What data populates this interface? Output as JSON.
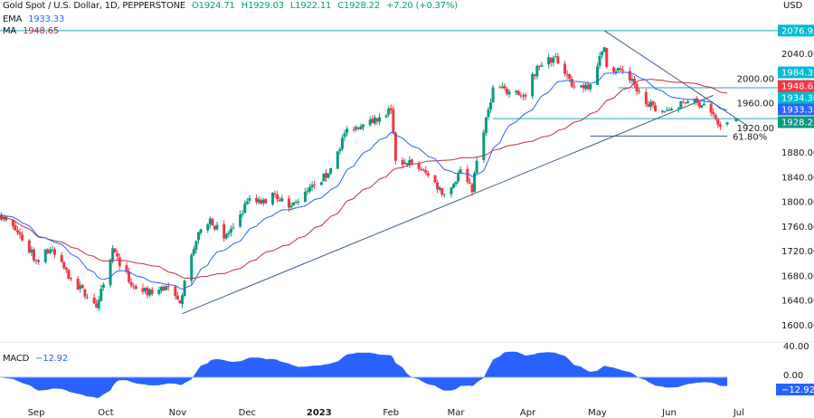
{
  "legend": {
    "symbol": "Gold Spot / U.S. Dollar, 1D, PEPPERSTONE",
    "open": "O1924.71",
    "high": "H1929.03",
    "low": "L1922.11",
    "close": "C1928.22",
    "change": "+7.20 (+0.37%)",
    "ema_label": "EMA",
    "ema_value": "1933.33",
    "ma_label": "MA",
    "ma_value": "1948.65",
    "macd_label": "MACD",
    "macd_value": "−12.92"
  },
  "colors": {
    "up": "#089981",
    "down": "#f23645",
    "ema": "#2962ff",
    "ma": "#c2303e",
    "level_line": "#26a6b8",
    "trendline": "#3b5b8c",
    "fib": "#3b5b8c",
    "macd_fill": "#2962ff",
    "label_cyan": "#00bcd4",
    "label_red": "#f23645",
    "label_blue": "#2962ff",
    "label_green": "#089981"
  },
  "chart_data": {
    "type": "candlestick",
    "currency": "USD",
    "y_ticks": [
      "2040.00",
      "2000.00",
      "1960.00",
      "1920.00",
      "1880.00",
      "1840.00",
      "1800.00",
      "1760.00",
      "1720.00",
      "1680.00",
      "1640.00",
      "1600.00"
    ],
    "ylim": [
      1580,
      2100
    ],
    "x_ticks": [
      {
        "date": "2022-09-01",
        "label": "Sep"
      },
      {
        "date": "2022-10-01",
        "label": "Oct"
      },
      {
        "date": "2022-11-01",
        "label": "Nov"
      },
      {
        "date": "2022-12-01",
        "label": "Dec"
      },
      {
        "date": "2023-01-01",
        "label": "2023"
      },
      {
        "date": "2023-02-01",
        "label": "Feb"
      },
      {
        "date": "2023-03-01",
        "label": "Mar"
      },
      {
        "date": "2023-04-01",
        "label": "Apr"
      },
      {
        "date": "2023-05-01",
        "label": "May"
      },
      {
        "date": "2023-06-01",
        "label": "Jun"
      },
      {
        "date": "2023-07-01",
        "label": "Jul"
      }
    ],
    "approx_closes": [
      [
        "2022-08-16",
        1778
      ],
      [
        "2022-08-24",
        1750
      ],
      [
        "2022-09-01",
        1705
      ],
      [
        "2022-09-07",
        1722
      ],
      [
        "2022-09-16",
        1675
      ],
      [
        "2022-09-23",
        1645
      ],
      [
        "2022-09-27",
        1628
      ],
      [
        "2022-09-30",
        1665
      ],
      [
        "2022-10-04",
        1724
      ],
      [
        "2022-10-07",
        1695
      ],
      [
        "2022-10-13",
        1662
      ],
      [
        "2022-10-21",
        1650
      ],
      [
        "2022-10-27",
        1662
      ],
      [
        "2022-11-02",
        1635
      ],
      [
        "2022-11-04",
        1672
      ],
      [
        "2022-11-10",
        1750
      ],
      [
        "2022-11-15",
        1772
      ],
      [
        "2022-11-21",
        1740
      ],
      [
        "2022-11-25",
        1758
      ],
      [
        "2022-12-01",
        1800
      ],
      [
        "2022-12-09",
        1797
      ],
      [
        "2022-12-13",
        1812
      ],
      [
        "2022-12-19",
        1790
      ],
      [
        "2022-12-23",
        1800
      ],
      [
        "2022-12-30",
        1826
      ],
      [
        "2023-01-05",
        1845
      ],
      [
        "2023-01-13",
        1918
      ],
      [
        "2023-01-20",
        1925
      ],
      [
        "2023-01-26",
        1930
      ],
      [
        "2023-02-01",
        1948
      ],
      [
        "2023-02-03",
        1866
      ],
      [
        "2023-02-10",
        1862
      ],
      [
        "2023-02-17",
        1842
      ],
      [
        "2023-02-24",
        1812
      ],
      [
        "2023-02-28",
        1828
      ],
      [
        "2023-03-03",
        1852
      ],
      [
        "2023-03-08",
        1815
      ],
      [
        "2023-03-10",
        1866
      ],
      [
        "2023-03-13",
        1912
      ],
      [
        "2023-03-17",
        1985
      ],
      [
        "2023-03-24",
        1978
      ],
      [
        "2023-03-31",
        1970
      ],
      [
        "2023-04-05",
        2020
      ],
      [
        "2023-04-13",
        2035
      ],
      [
        "2023-04-21",
        1985
      ],
      [
        "2023-04-28",
        1990
      ],
      [
        "2023-05-04",
        2050
      ],
      [
        "2023-05-05",
        2018
      ],
      [
        "2023-05-12",
        2012
      ],
      [
        "2023-05-19",
        1978
      ],
      [
        "2023-05-26",
        1946
      ],
      [
        "2023-06-02",
        1950
      ],
      [
        "2023-06-09",
        1962
      ],
      [
        "2023-06-16",
        1958
      ],
      [
        "2023-06-21",
        1934
      ],
      [
        "2023-06-23",
        1921
      ],
      [
        "2023-06-26",
        1928.22
      ]
    ],
    "last_candle": {
      "open": 1924.71,
      "high": 1929.03,
      "low": 1922.11,
      "close": 1928.22
    },
    "indicators": {
      "ema": 1933.33,
      "ma": 1948.65,
      "macd": -12.92
    },
    "horizontal_levels": [
      {
        "price": 2076.93,
        "label": "2076.93",
        "color": "label_cyan"
      },
      {
        "price": 1984.32,
        "label": "1984.32",
        "color": "label_cyan"
      },
      {
        "price": 1934.3,
        "label": "1934.30",
        "color": "label_cyan"
      }
    ],
    "price_labels": [
      {
        "text": "1948.65",
        "color": "label_red"
      },
      {
        "text": "1933.33",
        "color": "label_blue"
      },
      {
        "text": "1928.22",
        "color": "label_green"
      }
    ],
    "trendlines": [
      {
        "from": [
          "2022-11-03",
          1618
        ],
        "to": [
          "2023-06-20",
          1972
        ]
      },
      {
        "from": [
          "2023-05-04",
          2076.93
        ],
        "to": [
          "2023-07-05",
          1922
        ]
      }
    ],
    "fib_level": {
      "label": "61.80%",
      "price": 1906,
      "from": "2023-04-28",
      "to": "2023-06-26"
    },
    "macd_pane": {
      "y_ticks": [
        "40.00",
        "0.00"
      ],
      "value_label": "−12.92"
    }
  }
}
